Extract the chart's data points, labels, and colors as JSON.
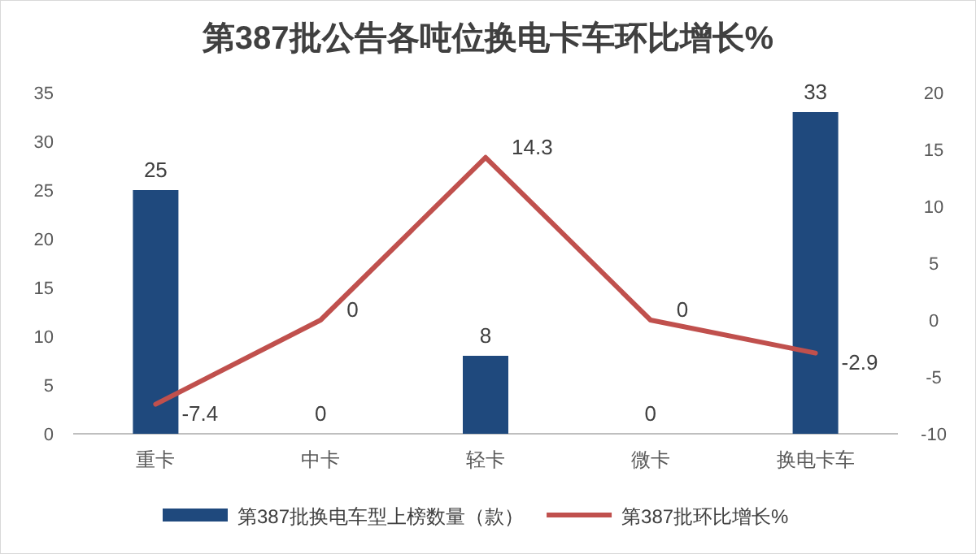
{
  "chart_data": {
    "type": "bar",
    "title": "第387批公告各吨位换电卡车环比增长%",
    "categories": [
      "重卡",
      "中卡",
      "轻卡",
      "微卡",
      "换电卡车"
    ],
    "series": [
      {
        "name": "第387批换电车型上榜数量（款）",
        "type": "bar",
        "color": "#1f497d",
        "values": [
          25,
          0,
          8,
          0,
          33
        ]
      },
      {
        "name": "第387批环比增长%",
        "type": "line",
        "axis": "y2",
        "color": "#c0504d",
        "values": [
          -7.4,
          0,
          14.3,
          0,
          -2.9
        ]
      }
    ],
    "ylim": [
      0,
      35
    ],
    "yticks": [
      0,
      5,
      10,
      15,
      20,
      25,
      30,
      35
    ],
    "y2lim": [
      -10,
      20
    ],
    "y2ticks": [
      -10,
      -5,
      0,
      5,
      10,
      15,
      20
    ],
    "data_labels": true,
    "legend": "bottom",
    "grid": false,
    "marker": "none",
    "line_style": "solid"
  }
}
